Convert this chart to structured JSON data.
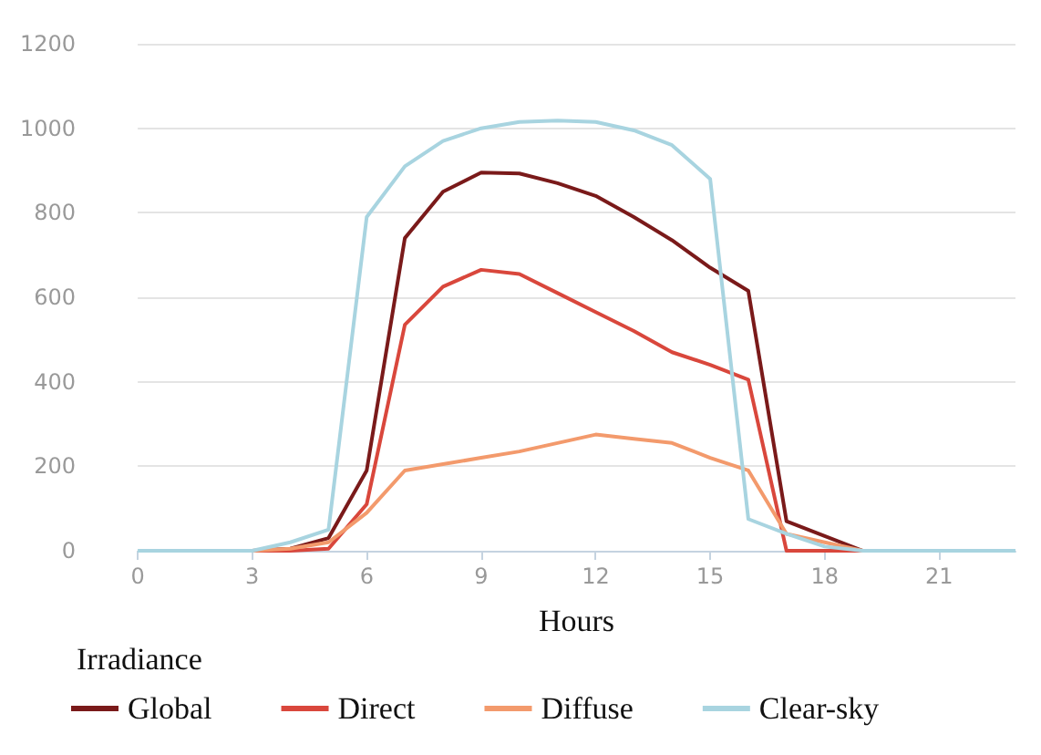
{
  "chart_data": {
    "type": "line",
    "xlabel": "Hours",
    "legend_title": "Irradiance",
    "x": [
      0,
      1,
      2,
      3,
      4,
      5,
      6,
      7,
      8,
      9,
      10,
      11,
      12,
      13,
      14,
      15,
      16,
      17,
      18,
      19,
      20,
      21,
      22,
      23
    ],
    "series": [
      {
        "name": "Global",
        "color": "#7a1a1a",
        "values": [
          null,
          null,
          null,
          0,
          5,
          30,
          190,
          740,
          850,
          895,
          893,
          870,
          840,
          790,
          735,
          670,
          615,
          70,
          35,
          0,
          0,
          null,
          null,
          null
        ]
      },
      {
        "name": "Direct",
        "color": "#d9473c",
        "values": [
          null,
          null,
          null,
          0,
          0,
          5,
          110,
          535,
          625,
          665,
          655,
          610,
          565,
          520,
          470,
          440,
          405,
          0,
          0,
          0,
          0,
          null,
          null,
          null
        ]
      },
      {
        "name": "Diffuse",
        "color": "#f39a6c",
        "values": [
          null,
          null,
          null,
          0,
          5,
          20,
          90,
          190,
          205,
          220,
          235,
          255,
          275,
          265,
          255,
          220,
          190,
          40,
          20,
          0,
          0,
          null,
          null,
          null
        ]
      },
      {
        "name": "Clear-sky",
        "color": "#a8d4e0",
        "values": [
          0,
          0,
          0,
          0,
          20,
          50,
          790,
          910,
          970,
          1000,
          1015,
          1018,
          1015,
          995,
          960,
          880,
          75,
          40,
          10,
          0,
          0,
          0,
          0,
          0
        ]
      }
    ],
    "xlim": [
      0,
      23
    ],
    "xticks": [
      0,
      3,
      6,
      9,
      12,
      15,
      18,
      21
    ],
    "ylim": [
      0,
      1200
    ],
    "yticks": [
      0,
      200,
      400,
      600,
      800,
      1000,
      1200
    ],
    "grid": "y",
    "legend": "bottom",
    "marker": "none",
    "line_style": "solid"
  }
}
